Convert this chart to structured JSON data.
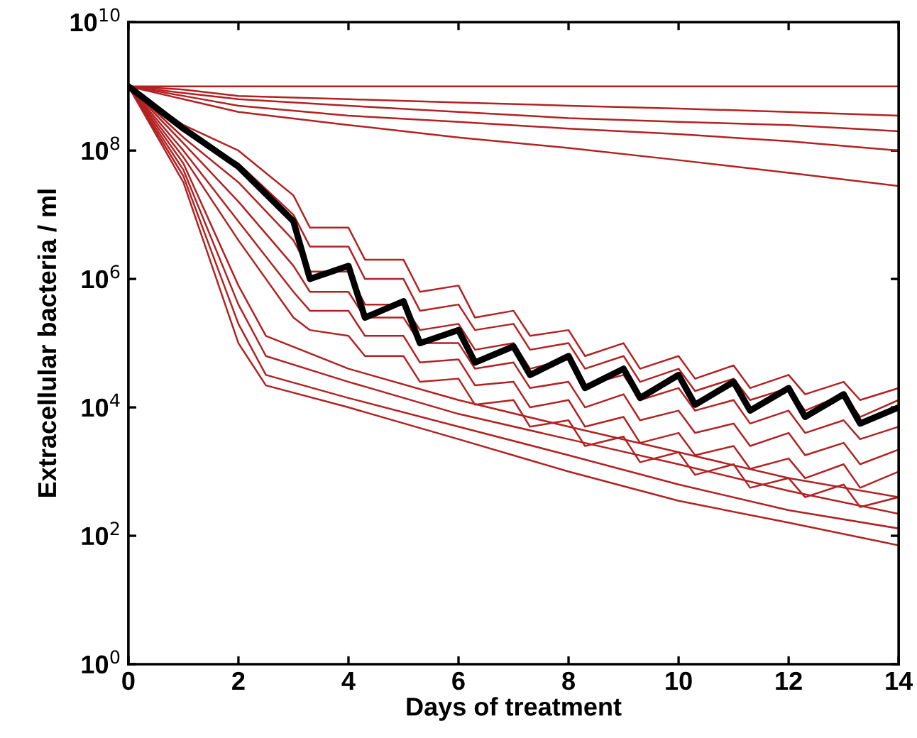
{
  "chart_data": {
    "type": "line",
    "xlabel": "Days of treatment",
    "ylabel": "Extracellular bacteria / ml",
    "log": "y",
    "grid": false,
    "marker": "none",
    "line_style": "solid",
    "xlim": [
      0,
      14
    ],
    "xticks": [
      0,
      2,
      4,
      6,
      8,
      10,
      12,
      14
    ],
    "ylim": [
      1,
      10000000000
    ],
    "yticks": [
      {
        "value": 1,
        "label": "10$^{0}$"
      },
      {
        "value": 100,
        "label": "10$^{2}$"
      },
      {
        "value": 10000,
        "label": "10$^{4}$"
      },
      {
        "value": 1000000,
        "label": "10$^{6}$"
      },
      {
        "value": 100000000,
        "label": "10$^{8}$"
      },
      {
        "value": 10000000000,
        "label": "10$^{10}$"
      }
    ],
    "x": [
      0,
      1,
      2,
      3,
      3.3,
      4,
      4.3,
      5,
      5.3,
      6,
      6.3,
      7,
      7.3,
      8,
      8.3,
      9,
      9.3,
      10,
      10.3,
      11,
      11.3,
      12,
      12.3,
      13,
      13.3,
      14
    ],
    "series": [
      {
        "color": "#b22222",
        "x": [
          0,
          14
        ],
        "values": [
          1000000000.0,
          1000000000.0
        ]
      },
      {
        "color": "#b22222",
        "x": [
          0,
          1,
          2,
          4,
          6,
          8,
          10,
          12,
          14
        ],
        "values": [
          1000000000.0,
          890000000.0,
          710000000.0,
          630000000.0,
          560000000.0,
          500000000.0,
          450000000.0,
          400000000.0,
          350000000.0
        ]
      },
      {
        "color": "#b22222",
        "x": [
          0,
          1,
          2,
          4,
          6,
          8,
          10,
          12,
          14
        ],
        "values": [
          1000000000.0,
          790000000.0,
          630000000.0,
          500000000.0,
          400000000.0,
          320000000.0,
          280000000.0,
          250000000.0,
          200000000.0
        ]
      },
      {
        "color": "#b22222",
        "x": [
          0,
          1,
          2,
          4,
          6,
          8,
          10,
          12,
          14
        ],
        "values": [
          1000000000.0,
          710000000.0,
          500000000.0,
          350000000.0,
          280000000.0,
          220000000.0,
          180000000.0,
          140000000.0,
          100000000.0
        ]
      },
      {
        "color": "#b22222",
        "x": [
          0,
          1,
          2,
          4,
          6,
          8,
          10,
          12,
          14
        ],
        "values": [
          1000000000.0,
          630000000.0,
          400000000.0,
          250000000.0,
          160000000.0,
          110000000.0,
          71000000.0,
          45000000.0,
          28000000.0
        ]
      },
      {
        "color": "#b22222",
        "values": [
          1000000000.0,
          250000000.0,
          100000000.0,
          20000000.0,
          6300000.0,
          6300000.0,
          2000000.0,
          2000000.0,
          630000.0,
          790000.0,
          250000.0,
          320000.0,
          130000.0,
          160000.0,
          63000.0,
          100000.0,
          40000.0,
          63000.0,
          28000.0,
          45000.0,
          20000.0,
          32000.0,
          16000.0,
          25000.0,
          13000.0,
          20000.0
        ]
      },
      {
        "color": "#b22222",
        "values": [
          1000000000.0,
          200000000.0,
          63000000.0,
          10000000.0,
          3200000.0,
          3200000.0,
          1000000.0,
          1000000.0,
          320000.0,
          400000.0,
          160000.0,
          200000.0,
          79000.0,
          100000.0,
          40000.0,
          63000.0,
          25000.0,
          40000.0,
          18000.0,
          28000.0,
          13000.0,
          20000.0,
          8900.0,
          16000.0,
          7100.0,
          13000.0
        ]
      },
      {
        "color": "#b22222",
        "values": [
          1000000000.0,
          160000000.0,
          32000000.0,
          4000000.0,
          1300000.0,
          1300000.0,
          400000.0,
          400000.0,
          160000.0,
          200000.0,
          79000.0,
          100000.0,
          40000.0,
          56000.0,
          22000.0,
          32000.0,
          13000.0,
          20000.0,
          8900.0,
          13000.0,
          5600.0,
          8900.0,
          4000.0,
          6300.0,
          3200.0,
          5000.0
        ]
      },
      {
        "color": "#b22222",
        "values": [
          1000000000.0,
          130000000.0,
          16000000.0,
          1600000.0,
          630000.0,
          630000.0,
          250000.0,
          250000.0,
          100000.0,
          100000.0,
          40000.0,
          50000.0,
          20000.0,
          25000.0,
          10000.0,
          16000.0,
          6300.0,
          8900.0,
          4000.0,
          5600.0,
          2500.0,
          4000.0,
          1800.0,
          2800.0,
          1300.0,
          2200.0
        ]
      },
      {
        "color": "#b22222",
        "values": [
          1000000000.0,
          100000000.0,
          7900000.0,
          630000.0,
          320000.0,
          320000.0,
          130000.0,
          130000.0,
          50000.0,
          56000.0,
          22000.0,
          25000.0,
          10000.0,
          13000.0,
          5000.0,
          7100.0,
          2800.0,
          4000.0,
          1800.0,
          2500.0,
          1100.0,
          1600.0,
          790.0,
          1300.0,
          560.0,
          1000.0
        ]
      },
      {
        "color": "#b22222",
        "values": [
          1000000000.0,
          79000000.0,
          4000000.0,
          250000.0,
          160000.0,
          130000.0,
          63000.0,
          63000.0,
          25000.0,
          28000.0,
          11000.0,
          13000.0,
          5000.0,
          6300.0,
          2500.0,
          3500.0,
          1400.0,
          2000.0,
          890.0,
          1300.0,
          560.0,
          790.0,
          400.0,
          630.0,
          280.0,
          400.0
        ]
      },
      {
        "color": "#b22222",
        "x": [
          0,
          1,
          2,
          2.5,
          4,
          6,
          8,
          10,
          12,
          14
        ],
        "values": [
          1000000000.0,
          63000000.0,
          790000.0,
          130000.0,
          40000.0,
          13000.0,
          5000.0,
          2000.0,
          790.0,
          400.0
        ]
      },
      {
        "color": "#b22222",
        "x": [
          0,
          1,
          2,
          2.5,
          4,
          6,
          8,
          10,
          12,
          14
        ],
        "values": [
          1000000000.0,
          50000000.0,
          400000.0,
          63000.0,
          25000.0,
          7900.0,
          3200.0,
          1300.0,
          500.0,
          220.0
        ]
      },
      {
        "color": "#b22222",
        "x": [
          0,
          1,
          2,
          2.5,
          4,
          6,
          8,
          10,
          12,
          14
        ],
        "values": [
          1000000000.0,
          40000000.0,
          200000.0,
          32000.0,
          14000.0,
          5000.0,
          1800.0,
          630.0,
          250.0,
          130.0
        ]
      },
      {
        "color": "#b22222",
        "x": [
          0,
          1,
          2,
          2.5,
          4,
          6,
          8,
          10,
          12,
          14
        ],
        "values": [
          1000000000.0,
          32000000.0,
          100000.0,
          22000.0,
          10000.0,
          3200.0,
          1000.0,
          350.0,
          160.0,
          71
        ]
      },
      {
        "color": "#000000",
        "values": [
          1000000000.0,
          220000000.0,
          56000000.0,
          7900000.0,
          1000000.0,
          1600000.0,
          250000.0,
          450000.0,
          100000.0,
          160000.0,
          50000.0,
          89000.0,
          32000.0,
          63000.0,
          20000.0,
          40000.0,
          14000.0,
          32000.0,
          11000.0,
          25000.0,
          8900.0,
          20000.0,
          7100.0,
          16000.0,
          5600.0,
          10000.0
        ]
      }
    ]
  }
}
